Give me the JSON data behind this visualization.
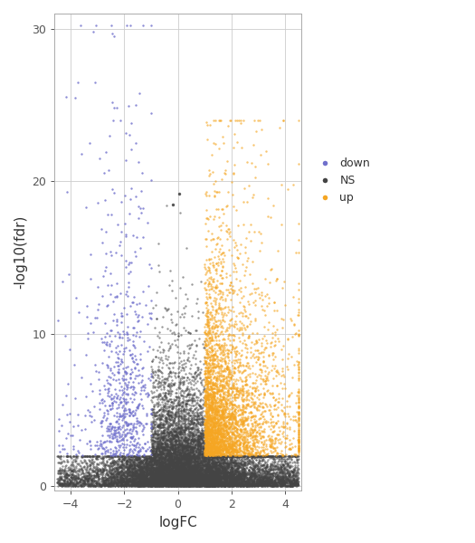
{
  "title": "",
  "xlabel": "logFC",
  "ylabel": "-log10(fdr)",
  "xlim": [
    -4.6,
    4.6
  ],
  "ylim": [
    -0.3,
    31
  ],
  "xticks": [
    -4,
    -2,
    0,
    2,
    4
  ],
  "yticks": [
    0,
    10,
    20,
    30
  ],
  "fc_cutoff": 1.0,
  "fdr_cutoff": 2.0,
  "color_down": "#7070CC",
  "color_ns": "#444444",
  "color_up": "#F5A623",
  "marker_size": 3,
  "legend_labels": [
    "down",
    "NS",
    "up"
  ],
  "background_color": "#ffffff",
  "grid_color": "#cccccc",
  "seed": 42
}
